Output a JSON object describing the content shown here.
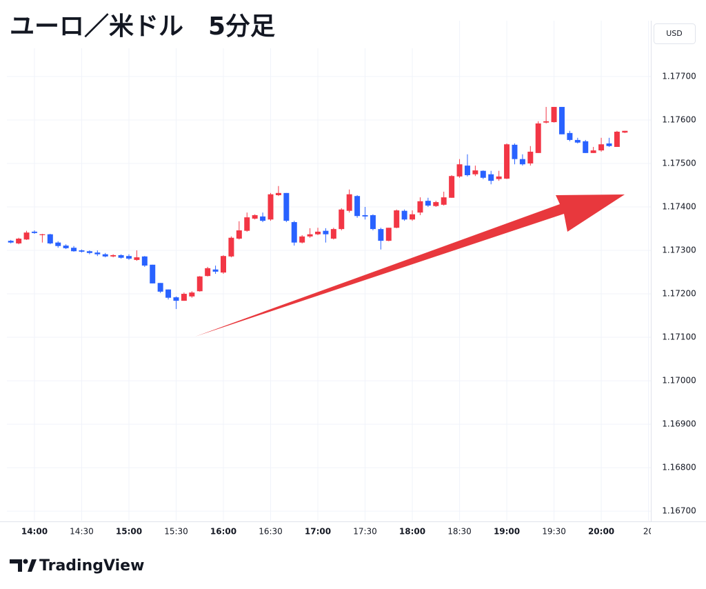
{
  "chart_data": {
    "type": "candlestick",
    "title": "ユーロ／米ドル　5分足",
    "currency": "USD",
    "watermark": "TradingView",
    "up_color": "#f23645",
    "down_color": "#2962ff",
    "grid": true,
    "open": [
      1.17322,
      1.17316,
      1.17325,
      1.17343,
      1.17335,
      1.17337,
      1.17318,
      1.17311,
      1.17306,
      1.173,
      1.17298,
      1.17295,
      1.17291,
      1.17286,
      1.17289,
      1.17287,
      1.17278,
      1.17286,
      1.17267,
      1.17225,
      1.1721,
      1.17192,
      1.17184,
      1.17194,
      1.17206,
      1.17241,
      1.17256,
      1.17249,
      1.17286,
      1.17327,
      1.17345,
      1.17373,
      1.17378,
      1.17371,
      1.17427,
      1.17432,
      1.17365,
      1.17318,
      1.17332,
      1.17337,
      1.17345,
      1.17327,
      1.17349,
      1.17391,
      1.17425,
      1.17381,
      1.17381,
      1.17349,
      1.17322,
      1.17352,
      1.17391,
      1.17371,
      1.17387,
      1.17414,
      1.17402,
      1.17405,
      1.17421,
      1.1747,
      1.17495,
      1.17475,
      1.17483,
      1.17475,
      1.17464,
      1.17465,
      1.17543,
      1.1751,
      1.175,
      1.17524,
      1.17594,
      1.17595,
      1.1763,
      1.1757,
      1.17554,
      1.17551,
      1.17524,
      1.1753,
      1.17546,
      1.17538,
      1.17571
    ],
    "high": [
      1.17324,
      1.17329,
      1.17345,
      1.17346,
      1.17338,
      1.17338,
      1.17321,
      1.17314,
      1.1731,
      1.17302,
      1.173,
      1.173,
      1.17294,
      1.17291,
      1.17291,
      1.17291,
      1.173,
      1.17287,
      1.17267,
      1.17225,
      1.1721,
      1.17194,
      1.17203,
      1.17206,
      1.17241,
      1.17262,
      1.17265,
      1.17289,
      1.17332,
      1.17367,
      1.17387,
      1.17383,
      1.17387,
      1.17432,
      1.17448,
      1.17432,
      1.17368,
      1.17335,
      1.17351,
      1.17352,
      1.17351,
      1.17352,
      1.17397,
      1.1744,
      1.17427,
      1.174,
      1.17383,
      1.17352,
      1.17352,
      1.17394,
      1.17394,
      1.17392,
      1.17422,
      1.17421,
      1.17414,
      1.17435,
      1.17473,
      1.1751,
      1.17521,
      1.17495,
      1.17484,
      1.17483,
      1.17483,
      1.17546,
      1.17546,
      1.17521,
      1.1754,
      1.17597,
      1.1763,
      1.1763,
      1.1763,
      1.17575,
      1.17559,
      1.17554,
      1.17538,
      1.17559,
      1.17559,
      1.17575,
      1.17575
    ],
    "low": [
      1.17316,
      1.17314,
      1.17324,
      1.17338,
      1.17318,
      1.17314,
      1.17306,
      1.17303,
      1.17297,
      1.17295,
      1.17291,
      1.17287,
      1.17284,
      1.17284,
      1.17281,
      1.17278,
      1.17276,
      1.17262,
      1.17224,
      1.17202,
      1.17187,
      1.17165,
      1.17184,
      1.17191,
      1.17205,
      1.1724,
      1.17246,
      1.17246,
      1.17284,
      1.17325,
      1.17343,
      1.17371,
      1.17365,
      1.17368,
      1.17425,
      1.17365,
      1.17311,
      1.17316,
      1.17329,
      1.17335,
      1.17318,
      1.17325,
      1.17346,
      1.17387,
      1.17375,
      1.17371,
      1.17346,
      1.17302,
      1.17321,
      1.17351,
      1.17368,
      1.17368,
      1.17381,
      1.174,
      1.174,
      1.17403,
      1.17421,
      1.17467,
      1.1747,
      1.17471,
      1.17464,
      1.17452,
      1.1746,
      1.17464,
      1.17498,
      1.17495,
      1.17495,
      1.17524,
      1.17592,
      1.17594,
      1.17567,
      1.17551,
      1.17546,
      1.17524,
      1.17524,
      1.17527,
      1.17538,
      1.17538,
      1.1757
    ],
    "close": [
      1.17318,
      1.17327,
      1.17341,
      1.1734,
      1.17337,
      1.17316,
      1.1731,
      1.17305,
      1.17298,
      1.17297,
      1.17294,
      1.17291,
      1.17286,
      1.17289,
      1.17283,
      1.17281,
      1.17284,
      1.17265,
      1.17224,
      1.17205,
      1.17191,
      1.17184,
      1.172,
      1.17203,
      1.1724,
      1.17259,
      1.17251,
      1.17287,
      1.17329,
      1.17346,
      1.17376,
      1.17381,
      1.17368,
      1.17429,
      1.17432,
      1.17368,
      1.17318,
      1.17332,
      1.17337,
      1.17343,
      1.17337,
      1.17349,
      1.17394,
      1.17429,
      1.17379,
      1.17378,
      1.17349,
      1.17322,
      1.17352,
      1.17392,
      1.17371,
      1.17383,
      1.17413,
      1.17403,
      1.17411,
      1.17422,
      1.17471,
      1.17498,
      1.17473,
      1.17484,
      1.17467,
      1.1746,
      1.1747,
      1.17544,
      1.1751,
      1.17498,
      1.17527,
      1.17592,
      1.17597,
      1.1763,
      1.17567,
      1.17554,
      1.17548,
      1.17524,
      1.1753,
      1.17544,
      1.1754,
      1.17573,
      1.17575
    ],
    "xlim": [
      -0.5,
      81.3
    ],
    "xticks": [
      {
        "value": 3,
        "label": "14:00"
      },
      {
        "value": 9,
        "label": "14:30"
      },
      {
        "value": 15,
        "label": "15:00"
      },
      {
        "value": 21,
        "label": "15:30"
      },
      {
        "value": 27,
        "label": "16:00"
      },
      {
        "value": 33,
        "label": "16:30"
      },
      {
        "value": 39,
        "label": "17:00"
      },
      {
        "value": 45,
        "label": "17:30"
      },
      {
        "value": 51,
        "label": "18:00"
      },
      {
        "value": 57,
        "label": "18:30"
      },
      {
        "value": 63,
        "label": "19:00"
      },
      {
        "value": 69,
        "label": "19:30"
      },
      {
        "value": 75,
        "label": "20:00"
      },
      {
        "value": 81,
        "label": "20"
      }
    ],
    "ylim": [
      1.16678,
      1.17757
    ],
    "yticks": [
      {
        "value": 1.167,
        "label": "1.16700"
      },
      {
        "value": 1.168,
        "label": "1.16800"
      },
      {
        "value": 1.169,
        "label": "1.16900"
      },
      {
        "value": 1.17,
        "label": "1.17000"
      },
      {
        "value": 1.171,
        "label": "1.17100"
      },
      {
        "value": 1.172,
        "label": "1.17200"
      },
      {
        "value": 1.173,
        "label": "1.17300"
      },
      {
        "value": 1.174,
        "label": "1.17400"
      },
      {
        "value": 1.175,
        "label": "1.17500"
      },
      {
        "value": 1.176,
        "label": "1.17600"
      },
      {
        "value": 1.177,
        "label": "1.17700"
      }
    ]
  }
}
